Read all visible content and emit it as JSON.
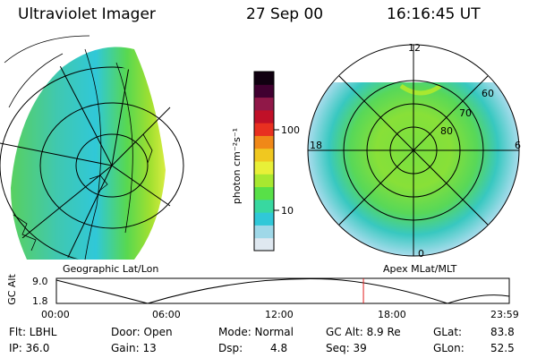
{
  "header": {
    "instrument": "Ultraviolet Imager",
    "date": "27 Sep 00",
    "time": "16:16:45 UT"
  },
  "panels": {
    "left_label": "Geographic Lat/Lon",
    "right_label": "Apex MLat/MLT",
    "mlt_labels": [
      "12",
      "18",
      "6",
      "0"
    ],
    "mlat_labels": [
      "60",
      "70",
      "80"
    ]
  },
  "colorbar": {
    "unit_label": "photon cm⁻²s⁻¹",
    "ticks": [
      "100",
      "10"
    ],
    "colors": [
      "#dfe8f0",
      "#9fd8e8",
      "#30c8d8",
      "#38d8a0",
      "#58e048",
      "#a8e830",
      "#e8f038",
      "#f0c820",
      "#f08818",
      "#e83020",
      "#c01028",
      "#901848",
      "#400030",
      "#100010"
    ]
  },
  "timeline": {
    "ylabel": "GC Alt",
    "ytick_high": "9.0",
    "ytick_low": "1.8",
    "xticks": [
      "00:00",
      "06:00",
      "12:00",
      "18:00",
      "23:59"
    ],
    "marker_time_fraction": 0.678,
    "marker_color": "#e02020"
  },
  "info": {
    "flt": "Flt: LBHL",
    "ip": "IP: 36.0",
    "door": "Door: Open",
    "gain": "Gain: 13",
    "mode": "Mode: Normal",
    "dsp_label": "Dsp:",
    "dsp_value": "4.8",
    "gcalt": "GC Alt: 8.9 Re",
    "seq": "Seq: 39",
    "glat_label": "GLat:",
    "glat_value": "83.8",
    "glon_label": "GLon:",
    "glon_value": "52.5"
  }
}
